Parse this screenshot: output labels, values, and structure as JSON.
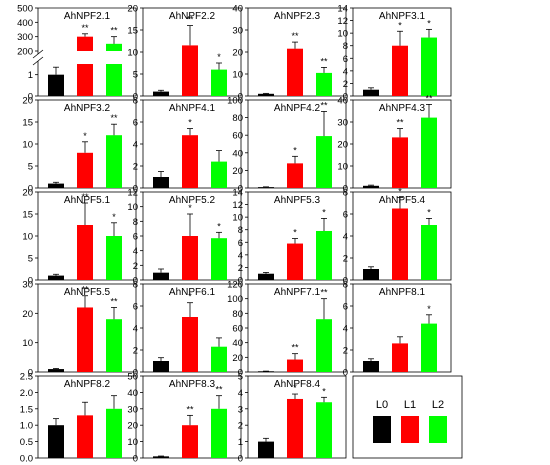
{
  "legend": {
    "labels": [
      "L0",
      "L1",
      "L2"
    ],
    "colors": [
      "#000000",
      "#ff0000",
      "#00ff00"
    ]
  },
  "chart_data": [
    {
      "type": "bar",
      "title": "AhNPF2.1",
      "categories": [
        "L0",
        "L1",
        "L2"
      ],
      "values": [
        1.0,
        300,
        250
      ],
      "errors": [
        0.35,
        20,
        50
      ],
      "sig": [
        "",
        "**",
        "**"
      ],
      "broken_axis": {
        "lower": [
          0,
          1.5
        ],
        "upper": [
          200,
          500
        ],
        "lower_ticks": [
          "0",
          "1"
        ],
        "upper_ticks": [
          "200",
          "300",
          "400",
          "500"
        ]
      }
    },
    {
      "type": "bar",
      "title": "AhNPF2.2",
      "categories": [
        "L0",
        "L1",
        "L2"
      ],
      "values": [
        1.0,
        11.5,
        6.0
      ],
      "errors": [
        0.3,
        4.5,
        1.5
      ],
      "sig": [
        "",
        "**",
        "*"
      ],
      "ylim": [
        0,
        20
      ],
      "yticks": [
        "0",
        "5",
        "10",
        "15",
        "20"
      ]
    },
    {
      "type": "bar",
      "title": "AhNPF2.3",
      "categories": [
        "L0",
        "L1",
        "L2"
      ],
      "values": [
        1.0,
        21.5,
        10.5
      ],
      "errors": [
        0.2,
        3.0,
        2.5
      ],
      "sig": [
        "",
        "**",
        "**"
      ],
      "ylim": [
        0,
        40
      ],
      "yticks": [
        "0",
        "10",
        "20",
        "30",
        "40"
      ]
    },
    {
      "type": "bar",
      "title": "AhNPF3.1",
      "categories": [
        "L0",
        "L1",
        "L2"
      ],
      "values": [
        1.0,
        8.0,
        9.3
      ],
      "errors": [
        0.3,
        2.3,
        1.3
      ],
      "sig": [
        "",
        "*",
        "*"
      ],
      "ylim": [
        0,
        14
      ],
      "yticks": [
        "0",
        "2",
        "4",
        "6",
        "8",
        "10",
        "12",
        "14"
      ]
    },
    {
      "type": "bar",
      "title": "AhNPF3.2",
      "categories": [
        "L0",
        "L1",
        "L2"
      ],
      "values": [
        1.0,
        8.0,
        12.0
      ],
      "errors": [
        0.3,
        2.5,
        2.5
      ],
      "sig": [
        "",
        "*",
        "**"
      ],
      "ylim": [
        0,
        20
      ],
      "yticks": [
        "0",
        "5",
        "10",
        "15",
        "20"
      ]
    },
    {
      "type": "bar",
      "title": "AhNPF4.1",
      "categories": [
        "L0",
        "L1",
        "L2"
      ],
      "values": [
        1.0,
        4.8,
        2.4
      ],
      "errors": [
        0.5,
        0.6,
        1.0
      ],
      "sig": [
        "",
        "*",
        ""
      ],
      "ylim": [
        0,
        8
      ],
      "yticks": [
        "0",
        "2",
        "4",
        "6",
        "8"
      ]
    },
    {
      "type": "bar",
      "title": "AhNPF4.2",
      "categories": [
        "L0",
        "L1",
        "L2"
      ],
      "values": [
        1.0,
        28.0,
        59.0
      ],
      "errors": [
        0.3,
        8.0,
        28.0
      ],
      "sig": [
        "",
        "*",
        "**"
      ],
      "ylim": [
        0,
        100
      ],
      "yticks": [
        "0",
        "20",
        "40",
        "60",
        "80",
        "100"
      ]
    },
    {
      "type": "bar",
      "title": "AhNPF4.3",
      "categories": [
        "L0",
        "L1",
        "L2"
      ],
      "values": [
        1.0,
        23.0,
        32.0
      ],
      "errors": [
        0.3,
        4.0,
        6.0
      ],
      "sig": [
        "",
        "**",
        "**"
      ],
      "ylim": [
        0,
        40
      ],
      "yticks": [
        "0",
        "10",
        "20",
        "30",
        "40"
      ]
    },
    {
      "type": "bar",
      "title": "AhNPF5.1",
      "categories": [
        "L0",
        "L1",
        "L2"
      ],
      "values": [
        1.0,
        12.5,
        10.0
      ],
      "errors": [
        0.3,
        5.0,
        3.0
      ],
      "sig": [
        "",
        "**",
        "*"
      ],
      "ylim": [
        0,
        20
      ],
      "yticks": [
        "0",
        "5",
        "10",
        "15",
        "20"
      ]
    },
    {
      "type": "bar",
      "title": "AhNPF5.2",
      "categories": [
        "L0",
        "L1",
        "L2"
      ],
      "values": [
        1.0,
        6.0,
        5.7
      ],
      "errors": [
        0.5,
        3.0,
        0.8
      ],
      "sig": [
        "",
        "*",
        "*"
      ],
      "ylim": [
        0,
        12
      ],
      "yticks": [
        "0",
        "2",
        "4",
        "6",
        "8",
        "10",
        "12"
      ]
    },
    {
      "type": "bar",
      "title": "AhNPF5.3",
      "categories": [
        "L0",
        "L1",
        "L2"
      ],
      "values": [
        1.0,
        5.8,
        7.8
      ],
      "errors": [
        0.2,
        0.8,
        2.0
      ],
      "sig": [
        "",
        "*",
        "*"
      ],
      "ylim": [
        0,
        14
      ],
      "yticks": [
        "0",
        "2",
        "4",
        "6",
        "8",
        "10",
        "12",
        "14"
      ]
    },
    {
      "type": "bar",
      "title": "AhNPF5.4",
      "categories": [
        "L0",
        "L1",
        "L2"
      ],
      "values": [
        1.0,
        6.5,
        5.0
      ],
      "errors": [
        0.2,
        1.0,
        0.6
      ],
      "sig": [
        "",
        "*",
        "*"
      ],
      "ylim": [
        0,
        8
      ],
      "yticks": [
        "0",
        "2",
        "4",
        "6",
        "8"
      ]
    },
    {
      "type": "bar",
      "title": "AhNPF5.5",
      "categories": [
        "L0",
        "L1",
        "L2"
      ],
      "values": [
        1.0,
        22.0,
        18.0
      ],
      "errors": [
        0.2,
        4.0,
        4.0
      ],
      "sig": [
        "",
        "**",
        "**"
      ],
      "ylim": [
        0,
        30
      ],
      "yticks": [
        "0",
        "10",
        "20",
        "30"
      ]
    },
    {
      "type": "bar",
      "title": "AhNPF6.1",
      "categories": [
        "L0",
        "L1",
        "L2"
      ],
      "values": [
        1.0,
        5.0,
        2.3
      ],
      "errors": [
        0.3,
        1.3,
        0.8
      ],
      "sig": [
        "",
        "*",
        ""
      ],
      "ylim": [
        0,
        8
      ],
      "yticks": [
        "0",
        "2",
        "4",
        "6",
        "8"
      ]
    },
    {
      "type": "bar",
      "title": "AhNPF7.1",
      "categories": [
        "L0",
        "L1",
        "L2"
      ],
      "values": [
        1.0,
        17.0,
        72.0
      ],
      "errors": [
        0.2,
        8.0,
        28.0
      ],
      "sig": [
        "",
        "**",
        "**"
      ],
      "ylim": [
        0,
        120
      ],
      "yticks": [
        "0",
        "20",
        "40",
        "60",
        "80",
        "100",
        "120"
      ]
    },
    {
      "type": "bar",
      "title": "AhNPF8.1",
      "categories": [
        "L0",
        "L1",
        "L2"
      ],
      "values": [
        1.0,
        2.6,
        4.4
      ],
      "errors": [
        0.2,
        0.6,
        0.8
      ],
      "sig": [
        "",
        "",
        "*"
      ],
      "ylim": [
        0,
        8
      ],
      "yticks": [
        "0",
        "2",
        "4",
        "6",
        "8"
      ]
    },
    {
      "type": "bar",
      "title": "AhNPF8.2",
      "categories": [
        "L0",
        "L1",
        "L2"
      ],
      "values": [
        1.0,
        1.3,
        1.5
      ],
      "errors": [
        0.2,
        0.4,
        0.4
      ],
      "sig": [
        "",
        "",
        ""
      ],
      "ylim": [
        0,
        2.5
      ],
      "yticks": [
        "0.0",
        "0.5",
        "1.0",
        "1.5",
        "2.0",
        "2.5"
      ]
    },
    {
      "type": "bar",
      "title": "AhNPF8.3",
      "categories": [
        "L0",
        "L1",
        "L2"
      ],
      "values": [
        1.0,
        20.0,
        30.0
      ],
      "errors": [
        0.2,
        6.0,
        8.0
      ],
      "sig": [
        "",
        "**",
        "**"
      ],
      "ylim": [
        0,
        50
      ],
      "yticks": [
        "0",
        "10",
        "20",
        "30",
        "40",
        "50"
      ]
    },
    {
      "type": "bar",
      "title": "AhNPF8.4",
      "categories": [
        "L0",
        "L1",
        "L2"
      ],
      "values": [
        1.0,
        3.6,
        3.4
      ],
      "errors": [
        0.2,
        0.3,
        0.3
      ],
      "sig": [
        "",
        "*",
        "*"
      ],
      "ylim": [
        0,
        5
      ],
      "yticks": [
        "0",
        "1",
        "2",
        "3",
        "4",
        "5"
      ]
    }
  ]
}
